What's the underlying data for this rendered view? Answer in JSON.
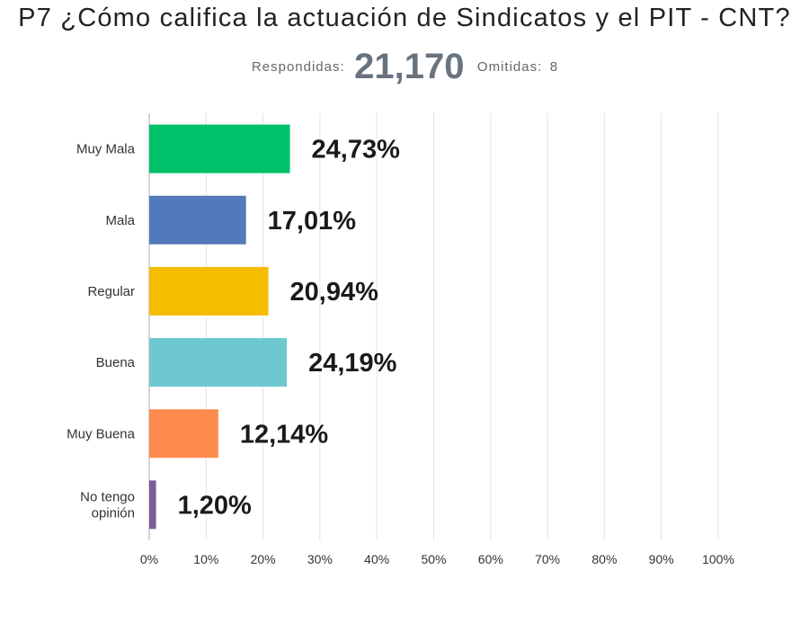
{
  "header": {
    "title": "P7 ¿Cómo califica la actuación de Sindicatos y el PIT - CNT?",
    "answered_label": "Respondidas:",
    "answered_value": "21,170",
    "skipped_label": "Omitidas:",
    "skipped_value": "8"
  },
  "chart_data": {
    "type": "bar",
    "orientation": "horizontal",
    "title": "P7 ¿Cómo califica la actuación de Sindicatos y el PIT - CNT?",
    "categories": [
      "Muy Mala",
      "Mala",
      "Regular",
      "Buena",
      "Muy Buena",
      "No tengo opinión"
    ],
    "category_lines": [
      [
        "Muy Mala"
      ],
      [
        "Mala"
      ],
      [
        "Regular"
      ],
      [
        "Buena"
      ],
      [
        "Muy Buena"
      ],
      [
        "No tengo",
        "opinión"
      ]
    ],
    "values": [
      24.73,
      17.01,
      20.94,
      24.19,
      12.14,
      1.2
    ],
    "value_labels": [
      "24,73%",
      "17,01%",
      "20,94%",
      "24,19%",
      "12,14%",
      "1,20%"
    ],
    "colors": [
      "#00c06a",
      "#5279b9",
      "#f5bd00",
      "#6ec8cf",
      "#fd8b50",
      "#7b5c99"
    ],
    "xlim": [
      0,
      100
    ],
    "xticks": [
      0,
      10,
      20,
      30,
      40,
      50,
      60,
      70,
      80,
      90,
      100
    ],
    "xtick_labels": [
      "0%",
      "10%",
      "20%",
      "30%",
      "40%",
      "50%",
      "60%",
      "70%",
      "80%",
      "90%",
      "100%"
    ],
    "grid": true,
    "gridline_color": "#e3e3e3",
    "axis_color": "#bbbbbb"
  }
}
